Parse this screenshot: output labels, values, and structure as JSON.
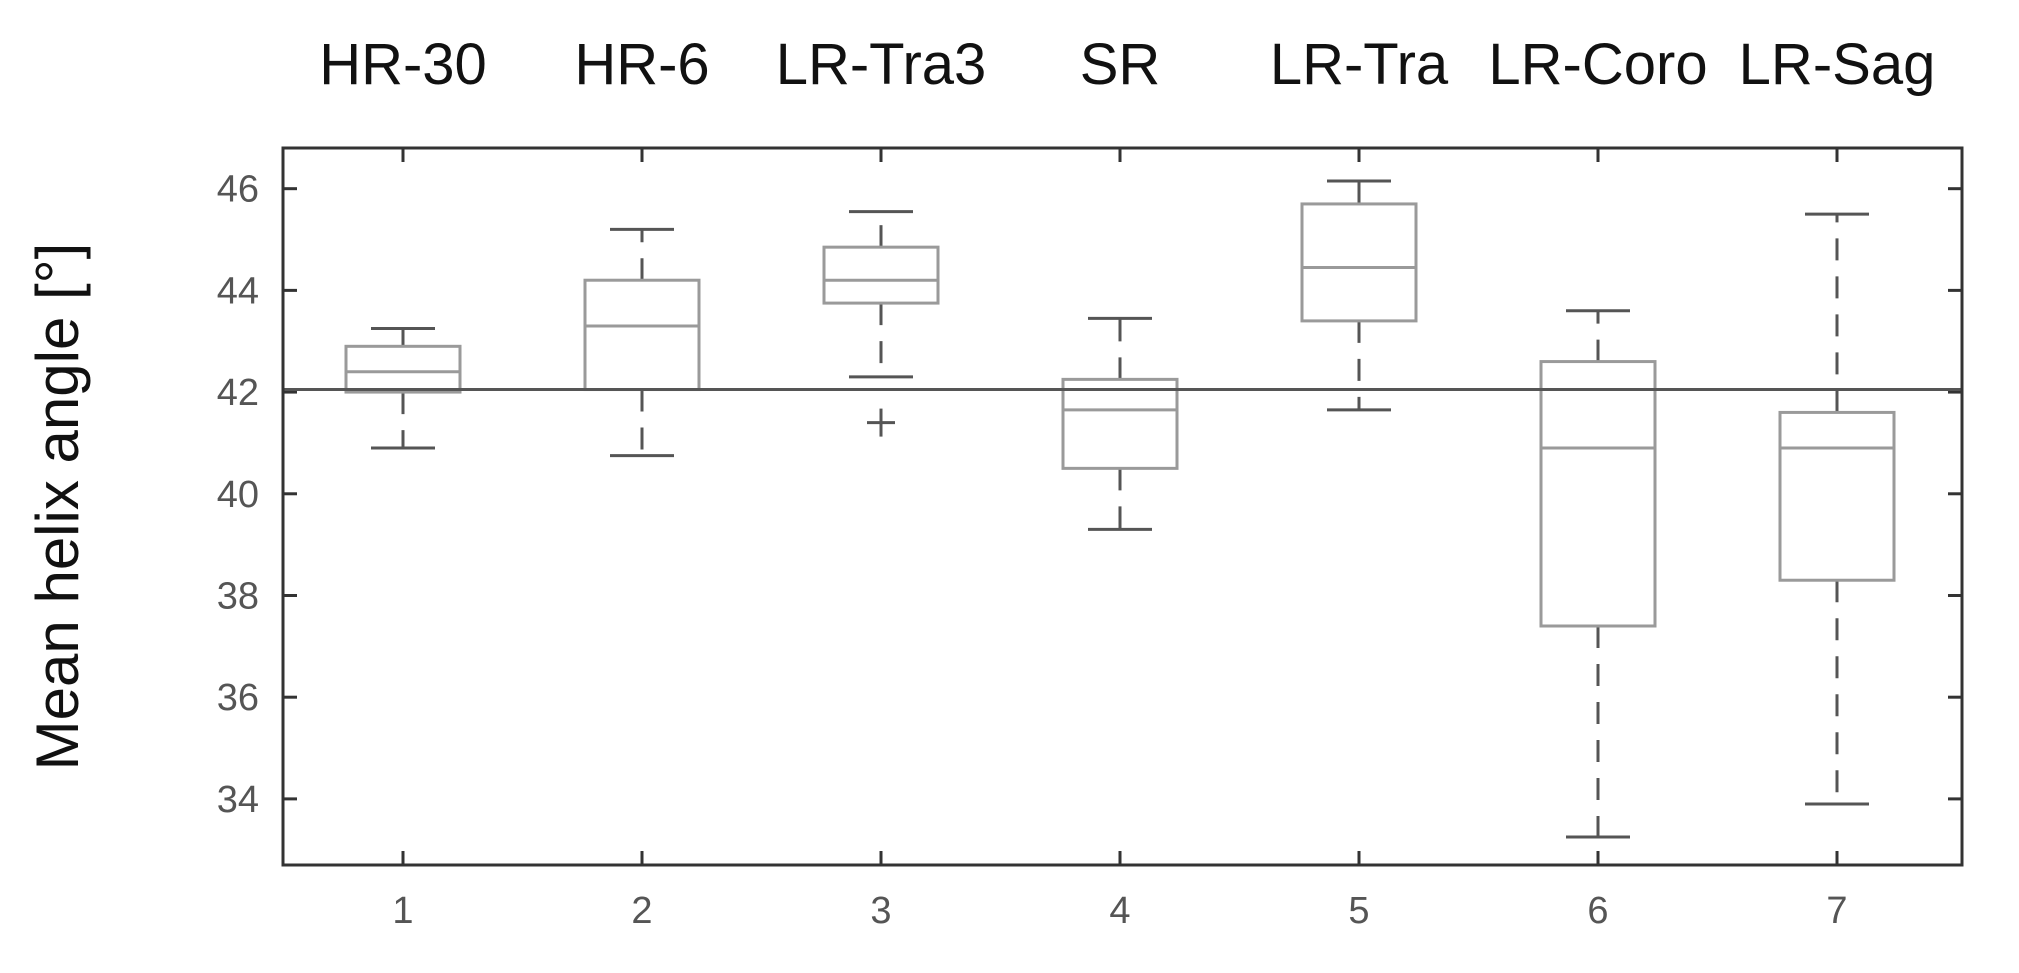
{
  "chart_data": {
    "type": "box",
    "title": "",
    "xlabel": "",
    "ylabel": "Mean helix angle [°]",
    "ylim": [
      32.7,
      46.8
    ],
    "yticks": [
      34,
      36,
      38,
      40,
      42,
      44,
      46
    ],
    "categories": [
      "1",
      "2",
      "3",
      "4",
      "5",
      "6",
      "7"
    ],
    "group_labels": [
      "HR-30",
      "HR-6",
      "LR-Tra3",
      "SR",
      "LR-Tra",
      "LR-Coro",
      "LR-Sag"
    ],
    "reference_line": 42.05,
    "boxes": [
      {
        "min": 40.9,
        "q1": 42.0,
        "median": 42.4,
        "q3": 42.9,
        "max": 43.25,
        "outliers": []
      },
      {
        "min": 40.75,
        "q1": 42.05,
        "median": 43.3,
        "q3": 44.2,
        "max": 45.2,
        "outliers": []
      },
      {
        "min": 42.3,
        "q1": 43.75,
        "median": 44.2,
        "q3": 44.85,
        "max": 45.55,
        "outliers": [
          41.4
        ]
      },
      {
        "min": 39.3,
        "q1": 40.5,
        "median": 41.65,
        "q3": 42.25,
        "max": 43.45,
        "outliers": []
      },
      {
        "min": 41.65,
        "q1": 43.4,
        "median": 44.45,
        "q3": 45.7,
        "max": 46.15,
        "outliers": []
      },
      {
        "min": 33.25,
        "q1": 37.4,
        "median": 40.9,
        "q3": 42.6,
        "max": 43.6,
        "outliers": []
      },
      {
        "min": 33.9,
        "q1": 38.3,
        "median": 40.9,
        "q3": 41.6,
        "max": 45.5,
        "outliers": []
      }
    ],
    "colors": {
      "box": "#9a9a9a",
      "whisker": "#555555",
      "axis": "#333333",
      "reference": "#555555"
    }
  }
}
